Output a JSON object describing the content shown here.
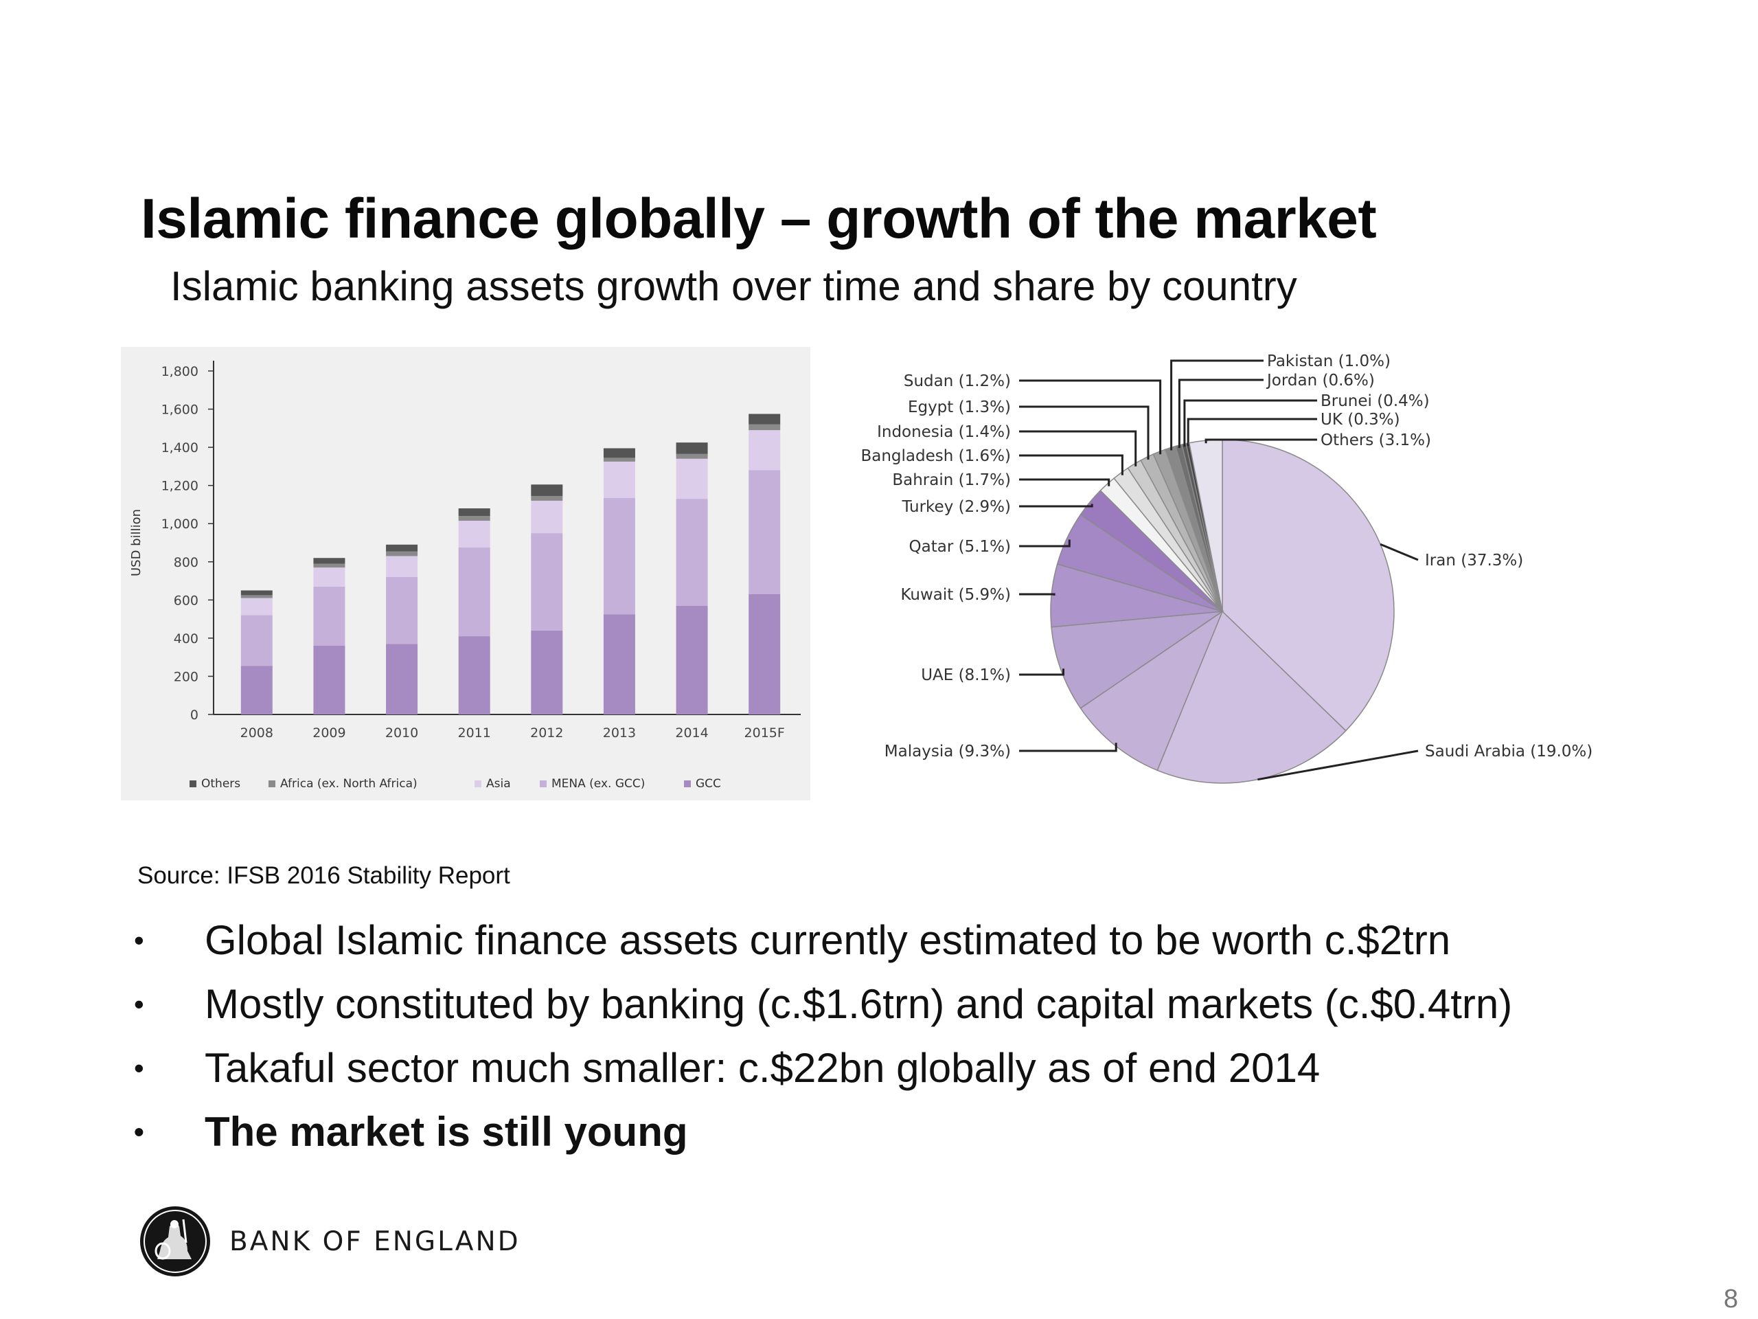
{
  "slide": {
    "title": "Islamic finance globally – growth of the market",
    "subtitle": "Islamic banking assets growth over time and share by country",
    "source": "Source: IFSB 2016 Stability Report",
    "page_number": "8"
  },
  "bullets": [
    {
      "text": "Global Islamic finance assets currently estimated to be worth c.$2trn",
      "bold": false
    },
    {
      "text": "Mostly constituted by banking (c.$1.6trn) and capital markets (c.$0.4trn)",
      "bold": false
    },
    {
      "text": "Takaful sector much smaller: c.$22bn globally as of end 2014",
      "bold": false
    },
    {
      "text": "The market is still young",
      "bold": true
    }
  ],
  "bullet_symbol": "•",
  "footer": {
    "brand": "BANK OF ENGLAND",
    "logo_icon": "britannia-seal-icon"
  },
  "chart_data": [
    {
      "type": "bar",
      "stacked": true,
      "ylabel": "USD billion",
      "ylim": [
        0,
        1800
      ],
      "yticks": [
        0,
        200,
        400,
        600,
        800,
        1000,
        1200,
        1400,
        1600,
        1800
      ],
      "ytick_labels": [
        "0",
        "200",
        "400",
        "600",
        "800",
        "1,000",
        "1,200",
        "1,400",
        "1,600",
        "1,800"
      ],
      "categories": [
        "2008",
        "2009",
        "2010",
        "2011",
        "2012",
        "2013",
        "2014",
        "2015F"
      ],
      "series": [
        {
          "name": "GCC",
          "color": "#a68ac2",
          "values": [
            255,
            360,
            370,
            410,
            440,
            525,
            570,
            630
          ]
        },
        {
          "name": "MENA (ex. GCC)",
          "color": "#c4b0d8",
          "values": [
            265,
            310,
            350,
            465,
            510,
            610,
            560,
            650
          ]
        },
        {
          "name": "Asia",
          "color": "#dccdea",
          "values": [
            90,
            100,
            110,
            140,
            170,
            190,
            210,
            210
          ]
        },
        {
          "name": "Africa (ex. North Africa)",
          "color": "#8a8a8a",
          "values": [
            15,
            20,
            25,
            25,
            25,
            20,
            25,
            30
          ]
        },
        {
          "name": "Others",
          "color": "#555555",
          "values": [
            25,
            30,
            35,
            40,
            60,
            50,
            60,
            55
          ]
        }
      ],
      "legend_order": [
        "Others",
        "Africa (ex. North Africa)",
        "Asia",
        "MENA (ex. GCC)",
        "GCC"
      ],
      "legend_position": "bottom",
      "grid": false
    },
    {
      "type": "pie",
      "slices": [
        {
          "label": "Iran (37.3%)",
          "value": 37.3,
          "color": "#d6c9e5"
        },
        {
          "label": "Saudi Arabia (19.0%)",
          "value": 19.0,
          "color": "#cfbfe0"
        },
        {
          "label": "Malaysia (9.3%)",
          "value": 9.3,
          "color": "#c3b1d8"
        },
        {
          "label": "UAE (8.1%)",
          "value": 8.1,
          "color": "#b8a4d0"
        },
        {
          "label": "Kuwait (5.9%)",
          "value": 5.9,
          "color": "#ad95cc"
        },
        {
          "label": "Qatar (5.1%)",
          "value": 5.1,
          "color": "#a487c5"
        },
        {
          "label": "Turkey (2.9%)",
          "value": 2.9,
          "color": "#9b7bbd"
        },
        {
          "label": "Bahrain (1.7%)",
          "value": 1.7,
          "color": "#f3f3f3"
        },
        {
          "label": "Bangladesh (1.6%)",
          "value": 1.6,
          "color": "#e0e0e0"
        },
        {
          "label": "Indonesia (1.4%)",
          "value": 1.4,
          "color": "#cccccc"
        },
        {
          "label": "Egypt (1.3%)",
          "value": 1.3,
          "color": "#b6b6b6"
        },
        {
          "label": "Sudan (1.2%)",
          "value": 1.2,
          "color": "#a0a0a0"
        },
        {
          "label": "Pakistan (1.0%)",
          "value": 1.0,
          "color": "#888888"
        },
        {
          "label": "Jordan (0.6%)",
          "value": 0.6,
          "color": "#707070"
        },
        {
          "label": "Brunei (0.4%)",
          "value": 0.4,
          "color": "#5a5a5a"
        },
        {
          "label": "UK (0.3%)",
          "value": 0.3,
          "color": "#444444"
        },
        {
          "label": "Others (3.1%)",
          "value": 3.1,
          "color": "#e6e2ee"
        }
      ]
    }
  ]
}
